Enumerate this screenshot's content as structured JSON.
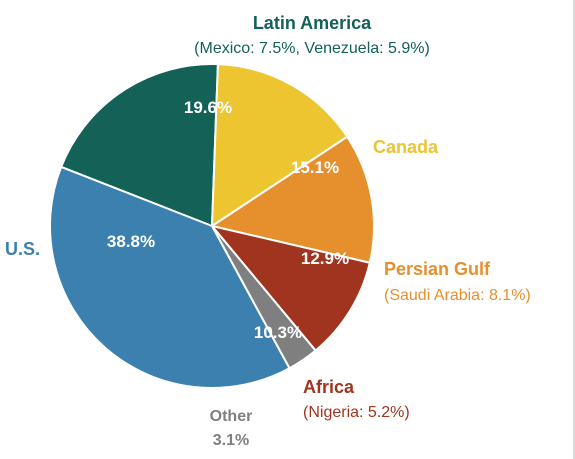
{
  "chart_data": {
    "type": "pie",
    "slices": [
      {
        "key": "latin",
        "label": "Latin America",
        "sublabel": "(Mexico: 7.5%, Venezuela: 5.9%)",
        "value": 19.6,
        "value_text": "19.6%",
        "color": "#146158",
        "label_color": "#146158"
      },
      {
        "key": "canada",
        "label": "Canada",
        "sublabel": "",
        "value": 15.1,
        "value_text": "15.1%",
        "color": "#ecc530",
        "label_color": "#ecc530"
      },
      {
        "key": "persian",
        "label": "Persian Gulf",
        "sublabel": "(Saudi Arabia: 8.1%)",
        "value": 12.9,
        "value_text": "12.9%",
        "color": "#e5902d",
        "label_color": "#e5902d"
      },
      {
        "key": "africa",
        "label": "Africa",
        "sublabel": "(Nigeria: 5.2%)",
        "value": 10.3,
        "value_text": "10.3%",
        "color": "#a1341f",
        "label_color": "#a1341f"
      },
      {
        "key": "other",
        "label": "Other",
        "sublabel": "",
        "value": 3.1,
        "value_text": "3.1%",
        "color": "#7f7f7f",
        "label_color": "#7f7f7f"
      },
      {
        "key": "us",
        "label": "U.S.",
        "sublabel": "",
        "value": 38.8,
        "value_text": "38.8%",
        "color": "#3b80ae",
        "label_color": "#3b80ae"
      }
    ]
  }
}
